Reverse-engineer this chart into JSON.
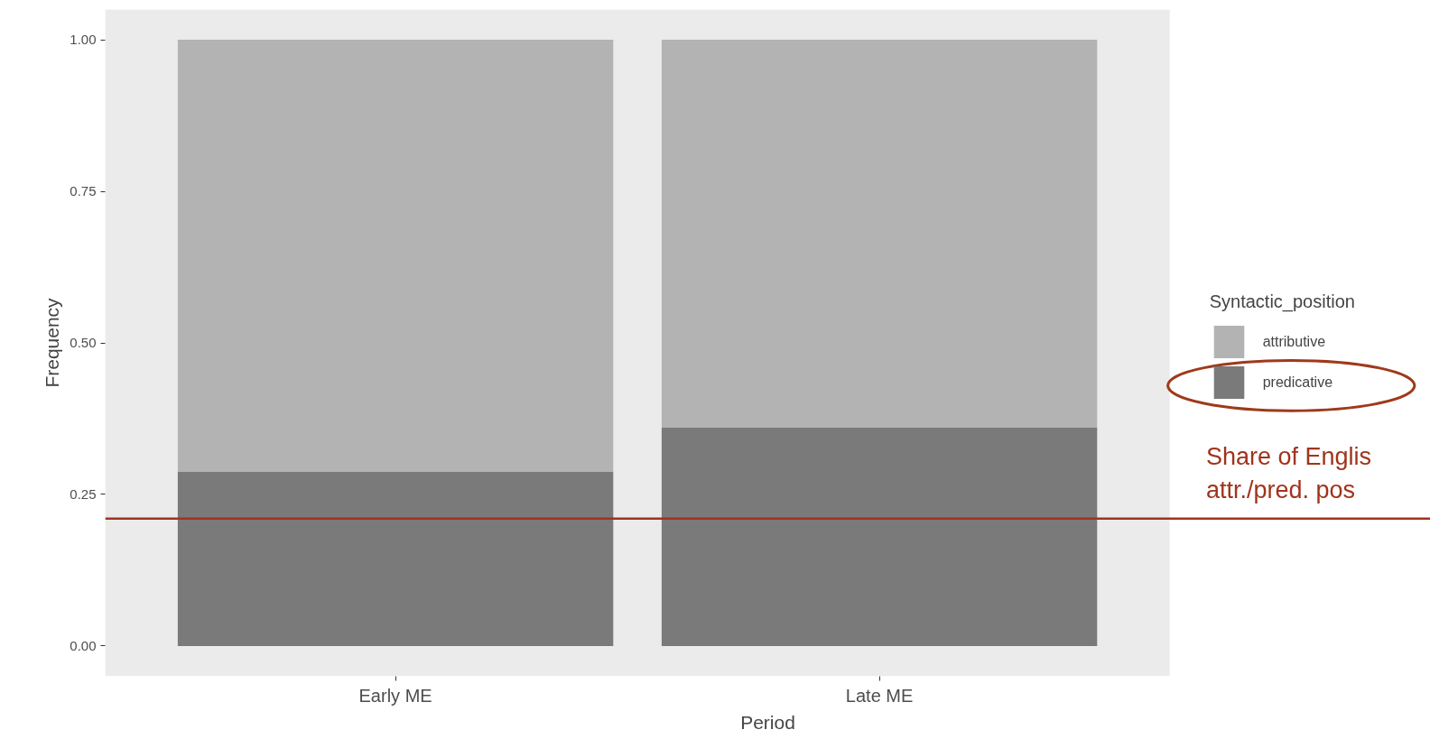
{
  "chart_data": {
    "type": "bar",
    "stacked": true,
    "xlabel": "Period",
    "ylabel": "Frequency",
    "legend_title": "Syntactic_position",
    "categories": [
      "Early ME",
      "Late ME"
    ],
    "series": [
      {
        "name": "predicative",
        "color": "#7a7a7a",
        "values": [
          0.287,
          0.36
        ]
      },
      {
        "name": "attributive",
        "color": "#b3b3b3",
        "values": [
          0.713,
          0.64
        ]
      }
    ],
    "ylim": [
      -0.05,
      1.05
    ],
    "yticks": [
      {
        "value": 0,
        "label": "0.00"
      },
      {
        "value": 0.25,
        "label": "0.25"
      },
      {
        "value": 0.5,
        "label": "0.50"
      },
      {
        "value": 0.75,
        "label": "0.75"
      },
      {
        "value": 1,
        "label": "1.00"
      }
    ],
    "ref_lines": [
      {
        "axis": "y",
        "value": 0.21,
        "label": "Share of Englis\nattr./pred. pos",
        "color": "#a0341c"
      }
    ],
    "legend": "right"
  }
}
